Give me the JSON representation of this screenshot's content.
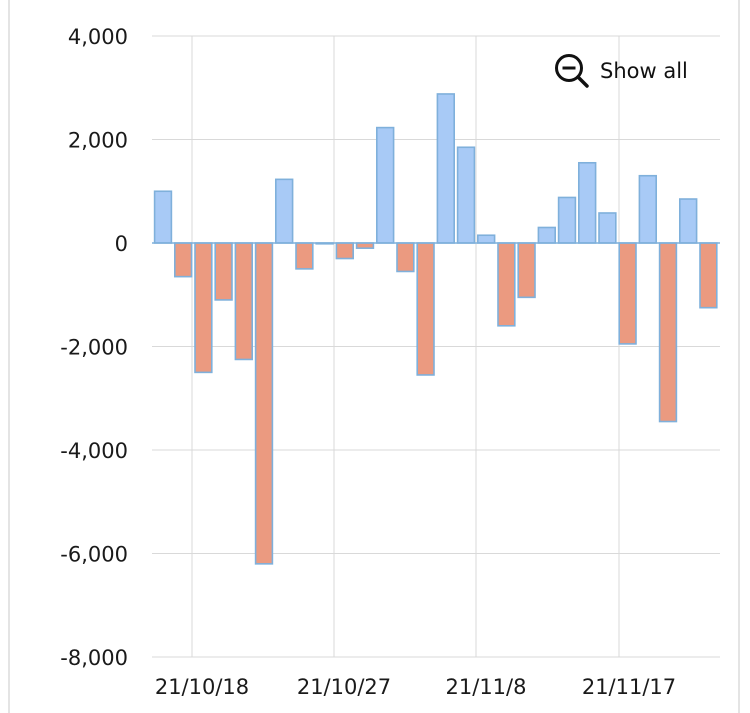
{
  "zoom_control": {
    "label": "Show all",
    "icon": "zoom-out-icon"
  },
  "chart_data": {
    "type": "bar",
    "title": "",
    "xlabel": "",
    "ylabel": "",
    "ylim": [
      -8000,
      4000
    ],
    "yticks": [
      "4,000",
      "2,000",
      "0",
      "-2,000",
      "-4,000",
      "-6,000",
      "-8,000"
    ],
    "xticks": [
      "21/10/18",
      "21/10/27",
      "21/11/8",
      "21/11/17"
    ],
    "grid": true,
    "legend": "none",
    "colors": {
      "positive": "#a8caf6",
      "negative": "#eb9a80",
      "outline": "#7fb0db",
      "grid": "#d9d9d9"
    },
    "values": [
      1000,
      -650,
      -2500,
      -1100,
      -2250,
      -6200,
      1230,
      -500,
      0,
      -300,
      -100,
      2230,
      -550,
      -2550,
      2880,
      1850,
      150,
      -1600,
      -1050,
      300,
      880,
      1550,
      580,
      -1950,
      1300,
      -3450,
      850,
      -1250
    ]
  }
}
